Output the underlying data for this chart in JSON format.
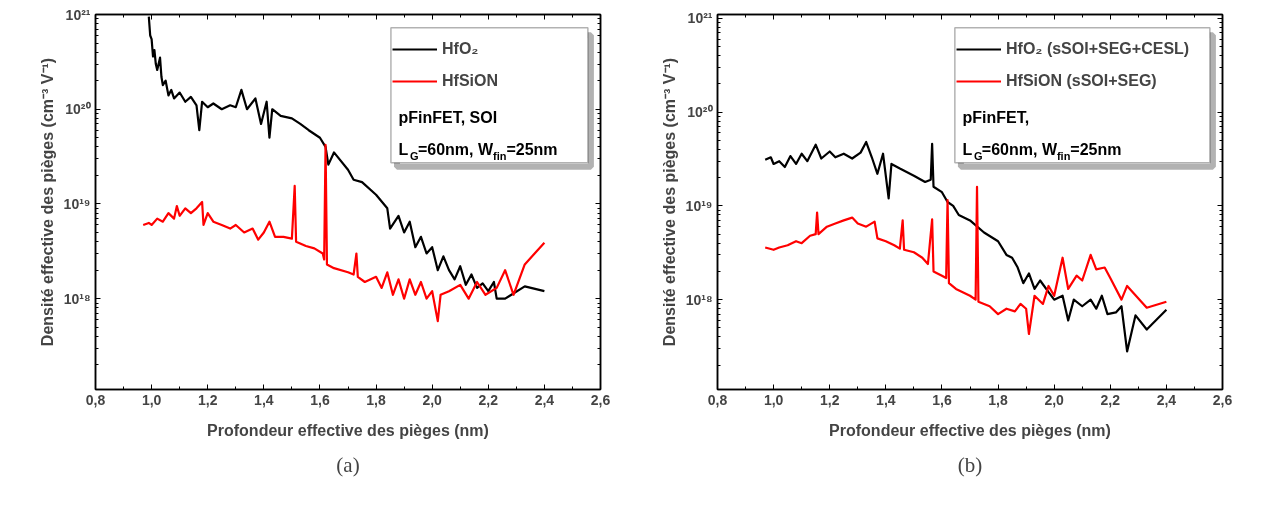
{
  "chart_data": [
    {
      "type": "line",
      "title": "(a)",
      "xlabel": "Profondeur effective des pièges (nm)",
      "ylabel": "Densité effective des pièges (cm⁻³ V⁻¹)",
      "log": "y",
      "legend": "top right",
      "grid": false,
      "xlim": [
        0.8,
        2.6
      ],
      "xticks": [
        {
          "value": 0.8,
          "label": "0,8"
        },
        {
          "value": 1.0,
          "label": "1,0"
        },
        {
          "value": 1.2,
          "label": "1,2"
        },
        {
          "value": 1.4,
          "label": "1,4"
        },
        {
          "value": 1.6,
          "label": "1,6"
        },
        {
          "value": 1.8,
          "label": "1,8"
        },
        {
          "value": 2.0,
          "label": "2,0"
        },
        {
          "value": 2.2,
          "label": "2,2"
        },
        {
          "value": 2.4,
          "label": "2,4"
        },
        {
          "value": 2.6,
          "label": "2,6"
        }
      ],
      "ylim": [
        1.1e+17,
        1e+21
      ],
      "yticks": [
        {
          "value": 1e+18,
          "label": "10¹⁸"
        },
        {
          "value": 1e+19,
          "label": "10¹⁹"
        },
        {
          "value": 1e+20,
          "label": "10²⁰"
        },
        {
          "value": 1e+21,
          "label": "10²¹"
        }
      ],
      "annotations": [
        "pFinFET, SOI",
        "L$_{G}$=60nm, W$_{fin}$=25nm"
      ],
      "series": [
        {
          "name": "HfO₂",
          "color": "#000000",
          "x": [
            0.99,
            0.995,
            1.0,
            1.005,
            1.01,
            1.015,
            1.02,
            1.03,
            1.035,
            1.04,
            1.05,
            1.06,
            1.07,
            1.08,
            1.1,
            1.12,
            1.14,
            1.16,
            1.17,
            1.18,
            1.2,
            1.22,
            1.25,
            1.28,
            1.3,
            1.32,
            1.34,
            1.37,
            1.39,
            1.41,
            1.42,
            1.43,
            1.46,
            1.5,
            1.53,
            1.56,
            1.6,
            1.62,
            1.63,
            1.65,
            1.7,
            1.72,
            1.75,
            1.8,
            1.84,
            1.85,
            1.88,
            1.9,
            1.92,
            1.94,
            1.96,
            1.98,
            2.0,
            2.02,
            2.04,
            2.06,
            2.08,
            2.1,
            2.12,
            2.14,
            2.16,
            2.18,
            2.2,
            2.22,
            2.23,
            2.26,
            2.33,
            2.4
          ],
          "values": [
            9.5e+20,
            6e+20,
            5.5e+20,
            3.6e+20,
            4.2e+20,
            3e+20,
            2.6e+20,
            3.5e+20,
            2.2e+20,
            1.8e+20,
            2e+20,
            1.4e+20,
            1.6e+20,
            1.3e+20,
            1.5e+20,
            1.2e+20,
            1.35e+20,
            1.1e+20,
            6e+19,
            1.2e+20,
            1.05e+20,
            1.15e+20,
            1e+20,
            1.1e+20,
            1.05e+20,
            1.6e+20,
            1e+20,
            1.3e+20,
            7e+19,
            1.2e+20,
            5e+19,
            1e+20,
            8.5e+19,
            8e+19,
            7e+19,
            6e+19,
            5e+19,
            4e+19,
            2.6e+19,
            3.5e+19,
            2.3e+19,
            1.8e+19,
            1.7e+19,
            1.25e+19,
            9e+18,
            5.5e+18,
            7.5e+18,
            5e+18,
            6.5e+18,
            3.5e+18,
            4.5e+18,
            3e+18,
            3.5e+18,
            2e+18,
            2.8e+18,
            2e+18,
            1.6e+18,
            2.2e+18,
            1.4e+18,
            1.8e+18,
            1.3e+18,
            1.45e+18,
            1.2e+18,
            1.5e+18,
            1e+18,
            1e+18,
            1.35e+18,
            1.2e+18
          ]
        },
        {
          "name": "HfSiON",
          "color": "#ff0000",
          "x": [
            0.97,
            0.99,
            1.0,
            1.02,
            1.04,
            1.06,
            1.08,
            1.09,
            1.1,
            1.12,
            1.14,
            1.16,
            1.18,
            1.185,
            1.2,
            1.22,
            1.25,
            1.28,
            1.3,
            1.33,
            1.36,
            1.38,
            1.4,
            1.42,
            1.44,
            1.47,
            1.5,
            1.51,
            1.515,
            1.55,
            1.58,
            1.61,
            1.615,
            1.62,
            1.625,
            1.65,
            1.7,
            1.72,
            1.73,
            1.735,
            1.76,
            1.8,
            1.82,
            1.84,
            1.86,
            1.88,
            1.9,
            1.92,
            1.94,
            1.96,
            1.98,
            2.0,
            2.02,
            2.03,
            2.06,
            2.1,
            2.13,
            2.16,
            2.19,
            2.23,
            2.26,
            2.29,
            2.33,
            2.4
          ],
          "values": [
            6e+18,
            6.3e+18,
            6e+18,
            7e+18,
            6.5e+18,
            8e+18,
            7e+18,
            9.5e+18,
            7.5e+18,
            9e+18,
            8e+18,
            9e+18,
            1.05e+19,
            6e+18,
            8e+18,
            6.5e+18,
            6e+18,
            5.5e+18,
            6e+18,
            5e+18,
            5.5e+18,
            4.2e+18,
            5e+18,
            6.5e+18,
            4.5e+18,
            4.5e+18,
            4.3e+18,
            1.55e+19,
            4e+18,
            3.6e+18,
            3.4e+18,
            3e+18,
            2.6e+18,
            4.2e+19,
            2.3e+18,
            2.1e+18,
            1.9e+18,
            1.8e+18,
            3e+18,
            1.7e+18,
            1.5e+18,
            1.7e+18,
            1.3e+18,
            1.9e+18,
            1.1e+18,
            1.6e+18,
            1e+18,
            1.6e+18,
            1.1e+18,
            1.5e+18,
            1e+18,
            1.2e+18,
            5.8e+17,
            1.1e+18,
            1.2e+18,
            1.4e+18,
            1e+18,
            1.5e+18,
            1.1e+18,
            1.3e+18,
            2e+18,
            1.1e+18,
            2.3e+18,
            3.9e+18
          ]
        }
      ]
    },
    {
      "type": "line",
      "title": "(b)",
      "xlabel": "Profondeur effective des pièges (nm)",
      "ylabel": "Densité effective des pièges (cm⁻³ V⁻¹)",
      "log": "y",
      "legend": "top right",
      "grid": false,
      "xlim": [
        0.8,
        2.6
      ],
      "xticks": [
        {
          "value": 0.8,
          "label": "0,8"
        },
        {
          "value": 1.0,
          "label": "1,0"
        },
        {
          "value": 1.2,
          "label": "1,2"
        },
        {
          "value": 1.4,
          "label": "1,4"
        },
        {
          "value": 1.6,
          "label": "1,6"
        },
        {
          "value": 1.8,
          "label": "1,8"
        },
        {
          "value": 2.0,
          "label": "2,0"
        },
        {
          "value": 2.2,
          "label": "2,2"
        },
        {
          "value": 2.4,
          "label": "2,4"
        },
        {
          "value": 2.6,
          "label": "2,6"
        }
      ],
      "ylim": [
        1.1e+17,
        1.1e+21
      ],
      "yticks": [
        {
          "value": 1e+18,
          "label": "10¹⁸"
        },
        {
          "value": 1e+19,
          "label": "10¹⁹"
        },
        {
          "value": 1e+20,
          "label": "10²⁰"
        },
        {
          "value": 1e+21,
          "label": "10²¹"
        }
      ],
      "annotations": [
        "pFinFET,",
        "L$_{G}$=60nm, W$_{fin}$=25nm"
      ],
      "series": [
        {
          "name": "HfO₂ (sSOI+SEG+CESL)",
          "color": "#000000",
          "x": [
            0.97,
            0.99,
            1.0,
            1.02,
            1.04,
            1.06,
            1.08,
            1.1,
            1.12,
            1.15,
            1.17,
            1.2,
            1.22,
            1.25,
            1.28,
            1.31,
            1.33,
            1.35,
            1.37,
            1.39,
            1.41,
            1.42,
            1.45,
            1.5,
            1.54,
            1.56,
            1.565,
            1.57,
            1.6,
            1.62,
            1.64,
            1.66,
            1.7,
            1.75,
            1.8,
            1.83,
            1.85,
            1.87,
            1.89,
            1.91,
            1.93,
            1.95,
            1.98,
            2.0,
            2.03,
            2.05,
            2.07,
            2.1,
            2.13,
            2.15,
            2.17,
            2.19,
            2.22,
            2.24,
            2.26,
            2.29,
            2.33,
            2.4
          ],
          "values": [
            3.1e+19,
            3.3e+19,
            2.8e+19,
            3e+19,
            2.6e+19,
            3.4e+19,
            2.8e+19,
            3.6e+19,
            3e+19,
            4.5e+19,
            3.2e+19,
            3.8e+19,
            3.3e+19,
            3.6e+19,
            3.2e+19,
            3.7e+19,
            4.8e+19,
            3.3e+19,
            2.2e+19,
            3.6e+19,
            1.2e+19,
            2.8e+19,
            2.5e+19,
            2.1e+19,
            1.8e+19,
            1.9e+19,
            4.6e+19,
            1.6e+19,
            1.4e+19,
            1.1e+19,
            1e+19,
            8e+18,
            7e+18,
            5.2e+18,
            4.2e+18,
            3e+18,
            2.8e+18,
            2.2e+18,
            1.5e+18,
            1.9e+18,
            1.3e+18,
            1.6e+18,
            1.2e+18,
            1e+18,
            1.1e+18,
            6e+17,
            1e+18,
            8.5e+17,
            1e+18,
            8e+17,
            1.1e+18,
            7e+17,
            7.3e+17,
            8.5e+17,
            2.8e+17,
            6.8e+17,
            4.8e+17,
            7.8e+17
          ]
        },
        {
          "name": "HfSiON (sSOI+SEG)",
          "color": "#ff0000",
          "x": [
            0.97,
            1.0,
            1.02,
            1.05,
            1.08,
            1.1,
            1.13,
            1.15,
            1.155,
            1.16,
            1.19,
            1.22,
            1.25,
            1.28,
            1.3,
            1.33,
            1.36,
            1.37,
            1.4,
            1.43,
            1.45,
            1.46,
            1.465,
            1.5,
            1.53,
            1.55,
            1.565,
            1.57,
            1.6,
            1.615,
            1.62,
            1.625,
            1.65,
            1.7,
            1.72,
            1.725,
            1.73,
            1.77,
            1.8,
            1.83,
            1.86,
            1.88,
            1.9,
            1.91,
            1.93,
            1.96,
            1.98,
            2.0,
            2.03,
            2.05,
            2.08,
            2.1,
            2.13,
            2.15,
            2.18,
            2.2,
            2.24,
            2.26,
            2.33,
            2.4
          ],
          "values": [
            3.6e+18,
            3.4e+18,
            3.6e+18,
            3.8e+18,
            4.2e+18,
            4e+18,
            4.8e+18,
            5e+18,
            8.5e+18,
            5e+18,
            6e+18,
            6.5e+18,
            7e+18,
            7.5e+18,
            6.5e+18,
            6e+18,
            6.8e+18,
            4.5e+18,
            4.2e+18,
            3.8e+18,
            3.5e+18,
            7e+18,
            3.4e+18,
            3.2e+18,
            2.8e+18,
            2.4e+18,
            7.2e+18,
            2e+18,
            1.8e+18,
            1.7e+18,
            1.15e+19,
            1.5e+18,
            1.3e+18,
            1.1e+18,
            1e+18,
            1.6e+19,
            9.5e+17,
            8.5e+17,
            7e+17,
            8e+17,
            7.5e+17,
            9e+17,
            8e+17,
            4.3e+17,
            1.1e+18,
            9e+17,
            1.4e+18,
            1.1e+18,
            2.8e+18,
            1.3e+18,
            1.8e+18,
            1.6e+18,
            3e+18,
            2.1e+18,
            2.2e+18,
            1.7e+18,
            1e+18,
            1.4e+18,
            8.2e+17,
            9.5e+17
          ]
        }
      ]
    }
  ]
}
